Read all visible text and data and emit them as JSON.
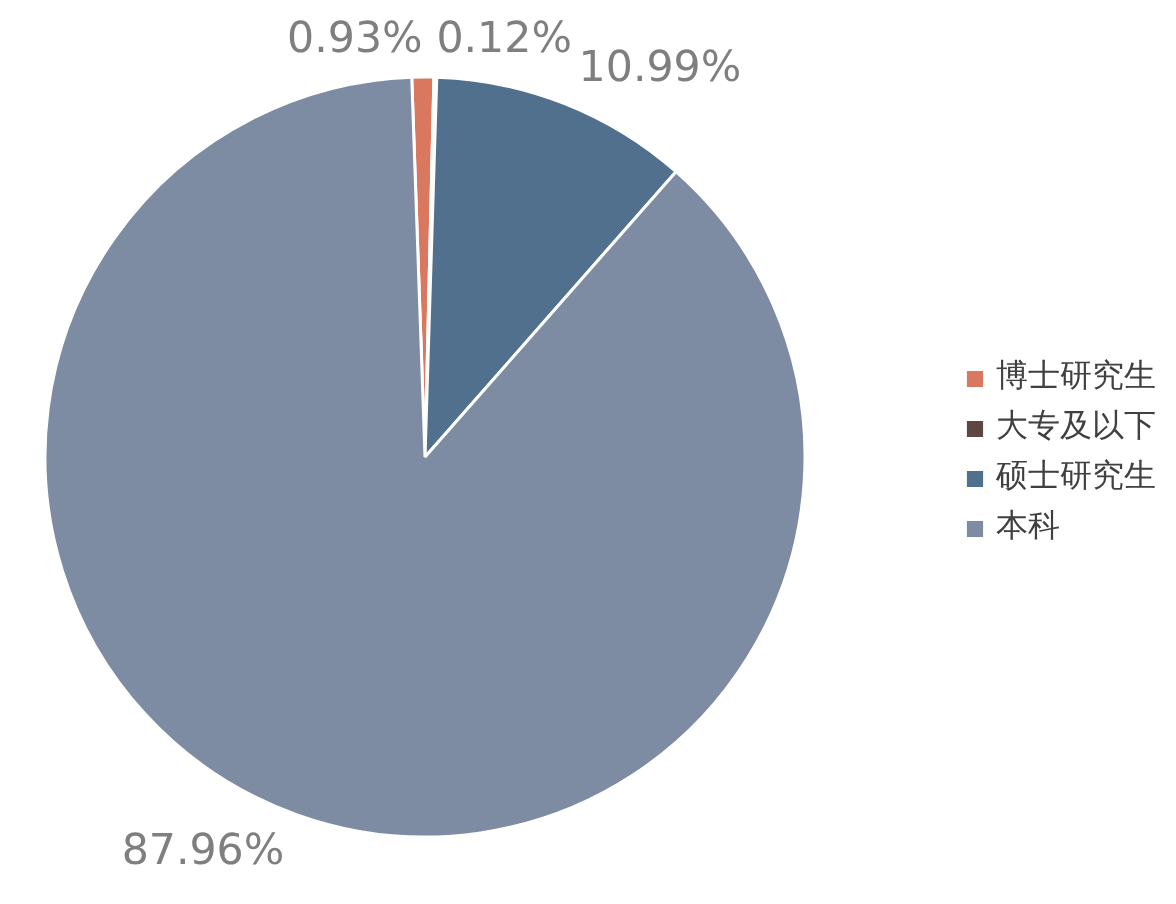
{
  "chart_data": {
    "type": "pie",
    "categories": [
      "博士研究生",
      "大专及以下",
      "硕士研究生",
      "本科"
    ],
    "values": [
      0.93,
      0.12,
      10.99,
      87.96
    ],
    "colors": [
      "#d9785f",
      "#5e4743",
      "#51708d",
      "#7d8ca3"
    ],
    "value_labels": [
      "0.93%",
      "0.12%",
      "10.99%",
      "87.96%"
    ],
    "legend": "right"
  }
}
